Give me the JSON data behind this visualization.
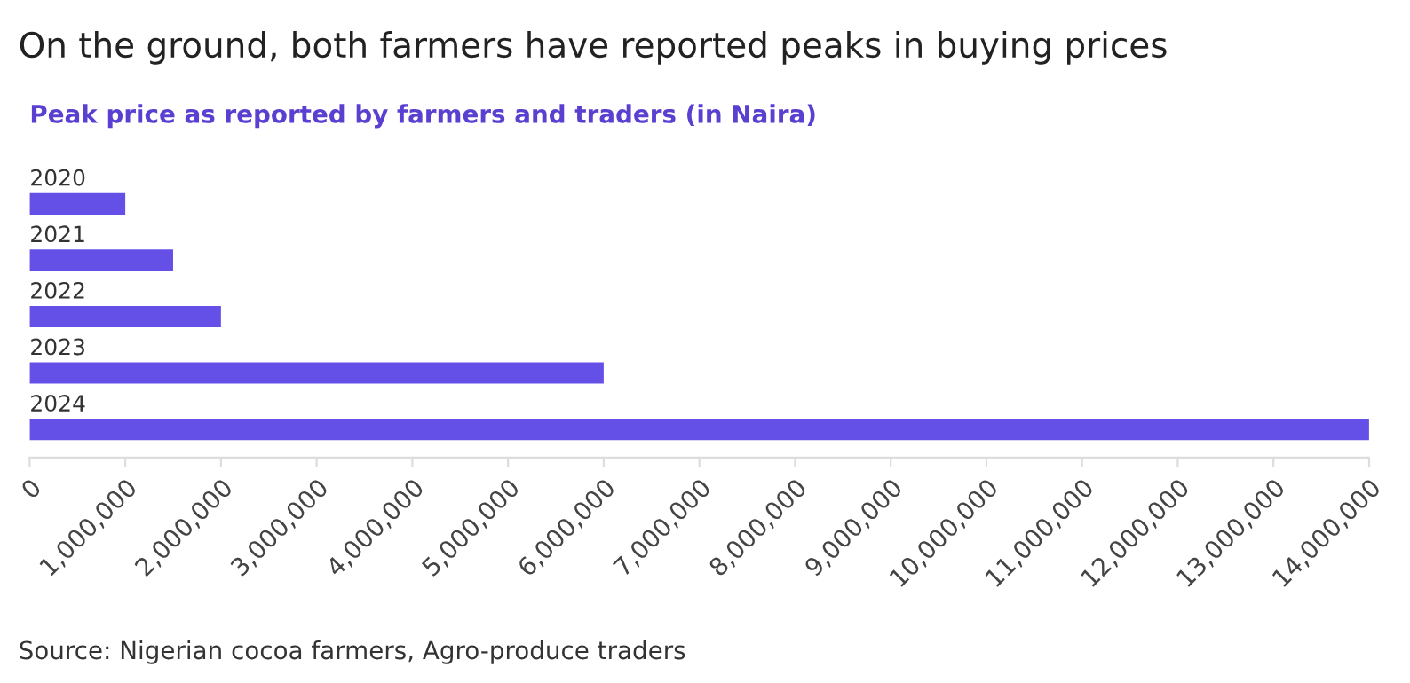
{
  "chart_data": {
    "type": "bar",
    "orientation": "horizontal",
    "title": "On the ground, both farmers have reported peaks in buying prices",
    "subtitle": "Peak price as reported by farmers and traders (in Naira)",
    "categories": [
      "2020",
      "2021",
      "2022",
      "2023",
      "2024"
    ],
    "values": [
      1000000,
      1500000,
      2000000,
      6000000,
      14000000
    ],
    "color": "#6450e6",
    "xlim": [
      0,
      14000000
    ],
    "xticks": [
      {
        "value": 0,
        "label": "0"
      },
      {
        "value": 1000000,
        "label": "1,000,000"
      },
      {
        "value": 2000000,
        "label": "2,000,000"
      },
      {
        "value": 3000000,
        "label": "3,000,000"
      },
      {
        "value": 4000000,
        "label": "4,000,000"
      },
      {
        "value": 5000000,
        "label": "5,000,000"
      },
      {
        "value": 6000000,
        "label": "6,000,000"
      },
      {
        "value": 7000000,
        "label": "7,000,000"
      },
      {
        "value": 8000000,
        "label": "8,000,000"
      },
      {
        "value": 9000000,
        "label": "9,000,000"
      },
      {
        "value": 10000000,
        "label": "10,000,000"
      },
      {
        "value": 11000000,
        "label": "11,000,000"
      },
      {
        "value": 12000000,
        "label": "12,000,000"
      },
      {
        "value": 13000000,
        "label": "13,000,000"
      },
      {
        "value": 14000000,
        "label": "14,000,000"
      }
    ],
    "grid": false,
    "annotations": [
      "Source: Nigerian cocoa farmers, Agro-produce traders"
    ]
  }
}
